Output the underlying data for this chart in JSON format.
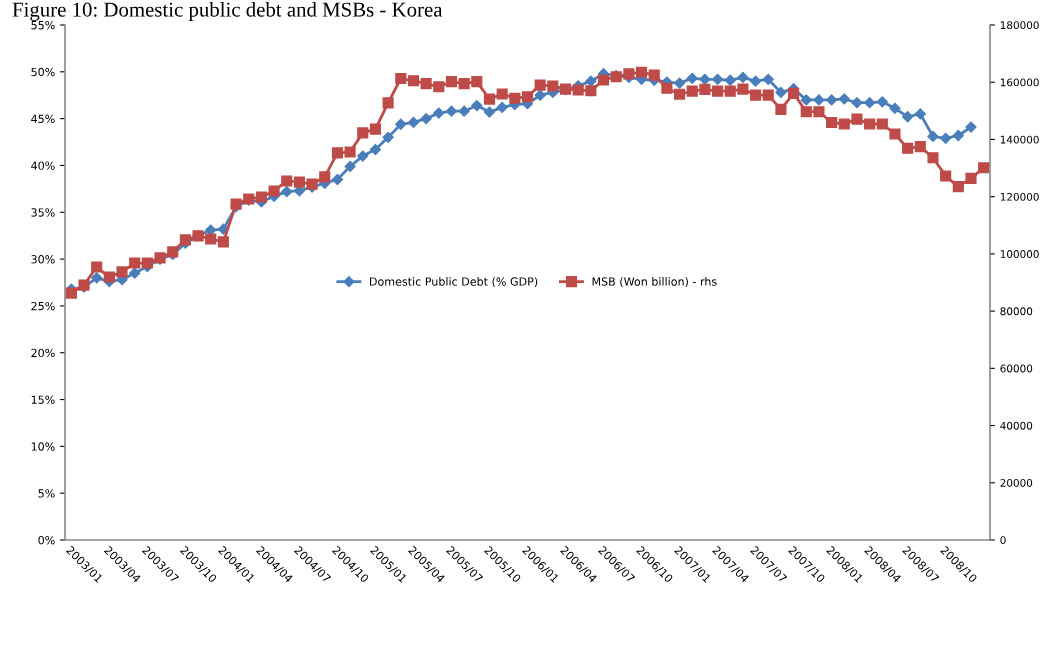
{
  "chart_data": {
    "type": "line",
    "title": "Figure 10: Domestic public debt and MSBs - Korea",
    "categories": [
      "2003/01",
      null,
      null,
      "2003/04",
      null,
      null,
      "2003/07",
      null,
      null,
      "2003/10",
      null,
      null,
      "2004/01",
      null,
      null,
      "2004/04",
      null,
      null,
      "2004/07",
      null,
      null,
      "2004/10",
      null,
      null,
      "2005/01",
      null,
      null,
      "2005/04",
      null,
      null,
      "2005/07",
      null,
      null,
      "2005/10",
      null,
      null,
      "2006/01",
      null,
      null,
      "2006/04",
      null,
      null,
      "2006/07",
      null,
      null,
      "2006/10",
      null,
      null,
      "2007/01",
      null,
      null,
      "2007/04",
      null,
      null,
      "2007/07",
      null,
      null,
      "2007/10",
      null,
      null,
      "2008/01",
      null,
      null,
      "2008/04",
      null,
      null,
      "2008/07",
      null,
      null,
      "2008/10",
      null,
      null,
      null
    ],
    "series": [
      {
        "name": "Domestic Public Debt (% GDP)",
        "color": "#4a7ebb",
        "marker": "diamond",
        "values": [
          26.8,
          27.0,
          28.0,
          27.6,
          27.8,
          28.5,
          29.2,
          30.0,
          30.5,
          31.7,
          32.5,
          33.1,
          33.2,
          35.6,
          36.3,
          36.1,
          36.7,
          37.2,
          37.3,
          37.7,
          38.1,
          38.5,
          39.9,
          41.0,
          41.7,
          43.0,
          44.4,
          44.6,
          45.0,
          45.6,
          45.8,
          45.8,
          46.4,
          45.7,
          46.2,
          46.5,
          46.6,
          47.5,
          47.8,
          48.1,
          48.5,
          49.0,
          49.8,
          49.6,
          49.4,
          49.2,
          49.1,
          48.9,
          48.8,
          49.3,
          49.2,
          49.2,
          49.1,
          49.4,
          49.0,
          49.2,
          47.8,
          48.2,
          47.0,
          47.0,
          47.0,
          47.1,
          46.7,
          46.7,
          46.8,
          46.1,
          45.2,
          45.5,
          43.1,
          42.9,
          43.2,
          44.1,
          null
        ]
      },
      {
        "name": "MSB (Won billion) - rhs",
        "color": "#be4b48",
        "marker": "square",
        "axis": "y2",
        "values": [
          86300,
          89100,
          95400,
          91900,
          93700,
          96800,
          96800,
          98600,
          100700,
          104900,
          106300,
          105200,
          104200,
          117400,
          119200,
          119900,
          122000,
          125500,
          125100,
          124400,
          126900,
          135300,
          135600,
          142300,
          143600,
          152800,
          161300,
          160500,
          159500,
          158400,
          160200,
          159500,
          160200,
          154100,
          155900,
          154400,
          154900,
          159000,
          158700,
          157600,
          157300,
          157000,
          160800,
          161900,
          162900,
          163500,
          162500,
          157900,
          155800,
          156900,
          157500,
          156900,
          156900,
          157600,
          155500,
          155500,
          150500,
          156100,
          149700,
          149700,
          145900,
          145400,
          147100,
          145400,
          145400,
          141900,
          136900,
          137500,
          133600,
          127200,
          123500,
          126400,
          130100
        ]
      }
    ],
    "ylim": [
      0,
      55
    ],
    "yticks": [
      {
        "value": 0,
        "label": "0%"
      },
      {
        "value": 5,
        "label": "5%"
      },
      {
        "value": 10,
        "label": "10%"
      },
      {
        "value": 15,
        "label": "15%"
      },
      {
        "value": 20,
        "label": "20%"
      },
      {
        "value": 25,
        "label": "25%"
      },
      {
        "value": 30,
        "label": "30%"
      },
      {
        "value": 35,
        "label": "35%"
      },
      {
        "value": 40,
        "label": "40%"
      },
      {
        "value": 45,
        "label": "45%"
      },
      {
        "value": 50,
        "label": "50%"
      },
      {
        "value": 55,
        "label": "55%"
      }
    ],
    "y2lim": [
      0,
      180000
    ],
    "y2ticks": [
      0,
      20000,
      40000,
      60000,
      80000,
      100000,
      120000,
      140000,
      160000,
      180000
    ],
    "legend": "center",
    "grid": false,
    "line_style": "solid"
  }
}
